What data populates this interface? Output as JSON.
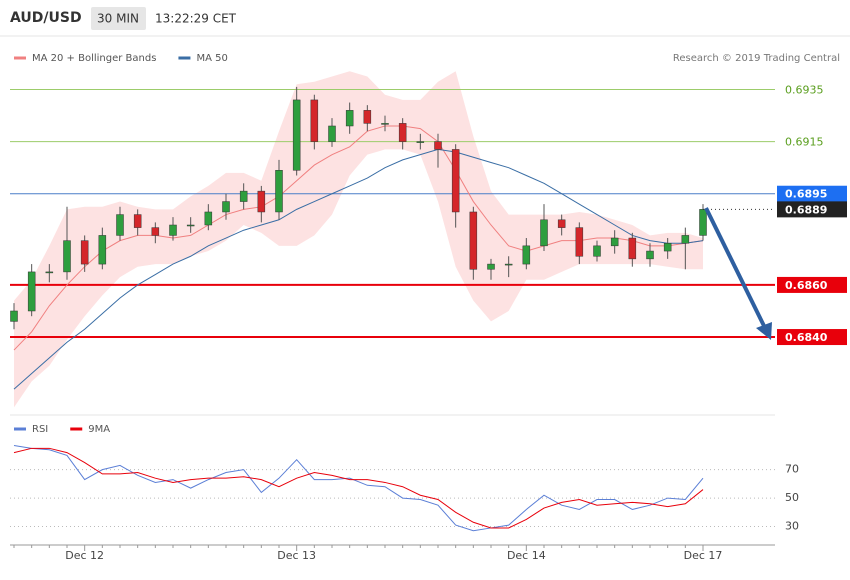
{
  "header": {
    "symbol": "AUD/USD",
    "timeframe": "30 MIN",
    "time": "13:22:29 CET"
  },
  "chart_data": [
    {
      "type": "candlestick",
      "annotation": "Research © 2019 Trading Central",
      "categories": [
        null,
        null,
        null,
        null,
        "Dec 12",
        null,
        null,
        null,
        null,
        null,
        null,
        null,
        null,
        null,
        null,
        null,
        "Dec 13",
        null,
        null,
        null,
        null,
        null,
        null,
        null,
        null,
        null,
        null,
        null,
        null,
        "Dec 14",
        null,
        null,
        null,
        null,
        null,
        null,
        null,
        null,
        null,
        "Dec 17"
      ],
      "open": [
        0.6846,
        0.685,
        0.6865,
        0.6865,
        0.6877,
        0.6868,
        0.6879,
        0.6887,
        0.6882,
        0.6879,
        0.6883,
        0.6883,
        0.6888,
        0.6892,
        0.6896,
        0.6888,
        0.6904,
        0.6931,
        0.6915,
        0.6921,
        0.6927,
        0.6922,
        0.6922,
        0.6915,
        0.6915,
        0.6912,
        0.6888,
        0.6866,
        0.6868,
        0.6868,
        0.6875,
        0.6885,
        0.6882,
        0.6871,
        0.6875,
        0.6878,
        0.687,
        0.6873,
        0.6876,
        0.6879
      ],
      "high": [
        0.6853,
        0.6868,
        0.6868,
        0.689,
        0.6879,
        0.6882,
        0.689,
        0.6889,
        0.6884,
        0.6886,
        0.6886,
        0.6891,
        0.6895,
        0.6899,
        0.6898,
        0.6908,
        0.6936,
        0.6933,
        0.6924,
        0.693,
        0.6929,
        0.6925,
        0.6924,
        0.6918,
        0.6918,
        0.6914,
        0.689,
        0.687,
        0.6871,
        0.6878,
        0.6891,
        0.6887,
        0.6884,
        0.6877,
        0.6881,
        0.688,
        0.6876,
        0.6878,
        0.6882,
        0.6891
      ],
      "low": [
        0.6843,
        0.6848,
        0.6861,
        0.6862,
        0.6865,
        0.6866,
        0.6877,
        0.6879,
        0.6876,
        0.6877,
        0.688,
        0.6881,
        0.6885,
        0.6889,
        0.6884,
        0.6885,
        0.6902,
        0.6912,
        0.6913,
        0.6918,
        0.6919,
        0.6919,
        0.6912,
        0.6912,
        0.6905,
        0.6882,
        0.6862,
        0.6862,
        0.6863,
        0.6866,
        0.6873,
        0.6879,
        0.6868,
        0.6869,
        0.6872,
        0.6867,
        0.6867,
        0.687,
        0.6866,
        0.6877
      ],
      "close": [
        0.685,
        0.6865,
        0.6865,
        0.6877,
        0.6868,
        0.6879,
        0.6887,
        0.6882,
        0.6879,
        0.6883,
        0.6883,
        0.6888,
        0.6892,
        0.6896,
        0.6888,
        0.6904,
        0.6931,
        0.6915,
        0.6921,
        0.6927,
        0.6922,
        0.6922,
        0.6915,
        0.6915,
        0.6912,
        0.6888,
        0.6866,
        0.6868,
        0.6868,
        0.6875,
        0.6885,
        0.6882,
        0.6871,
        0.6875,
        0.6878,
        0.687,
        0.6873,
        0.6876,
        0.6879,
        0.6889
      ],
      "up_color": "#2e9e3e",
      "down_color": "#d4262a",
      "band_color": "#fde2e2",
      "series": [
        {
          "name": "MA 20 + Bollinger Bands",
          "color": "#f08080",
          "values": [
            0.6835,
            0.6842,
            0.6852,
            0.686,
            0.6867,
            0.6873,
            0.6877,
            0.6879,
            0.6879,
            0.6878,
            0.6879,
            0.6883,
            0.6887,
            0.6889,
            0.689,
            0.6894,
            0.69,
            0.6906,
            0.691,
            0.6913,
            0.6919,
            0.6921,
            0.6921,
            0.692,
            0.6915,
            0.6904,
            0.6892,
            0.6883,
            0.6875,
            0.6873,
            0.6875,
            0.6877,
            0.6877,
            0.6878,
            0.6878,
            0.6877,
            0.6875,
            0.6875,
            0.6876,
            0.6877
          ],
          "upper": [
            0.6854,
            0.6862,
            0.6875,
            0.6889,
            0.689,
            0.689,
            0.6892,
            0.689,
            0.6889,
            0.6889,
            0.6894,
            0.6898,
            0.6903,
            0.6903,
            0.69,
            0.6919,
            0.6937,
            0.6938,
            0.694,
            0.6942,
            0.694,
            0.6933,
            0.6931,
            0.6931,
            0.6938,
            0.6942,
            0.6917,
            0.6896,
            0.6887,
            0.6887,
            0.6887,
            0.6887,
            0.6888,
            0.6887,
            0.6885,
            0.6883,
            0.6879,
            0.688,
            0.688,
            0.6878
          ],
          "lower": [
            0.6813,
            0.6823,
            0.6829,
            0.6839,
            0.6848,
            0.6856,
            0.6863,
            0.6867,
            0.6868,
            0.6868,
            0.6871,
            0.6873,
            0.6877,
            0.6883,
            0.688,
            0.6875,
            0.6875,
            0.6879,
            0.6887,
            0.6902,
            0.691,
            0.6912,
            0.6912,
            0.691,
            0.6892,
            0.6867,
            0.6854,
            0.6846,
            0.685,
            0.6862,
            0.6862,
            0.6865,
            0.6868,
            0.6868,
            0.6868,
            0.6868,
            0.6868,
            0.6867,
            0.6866,
            0.6866
          ]
        },
        {
          "name": "MA 50",
          "color": "#3a6ea5",
          "values": [
            0.682,
            0.6826,
            0.6832,
            0.6838,
            0.6843,
            0.6849,
            0.6855,
            0.686,
            0.6864,
            0.6868,
            0.6871,
            0.6875,
            0.6878,
            0.6881,
            0.6883,
            0.6885,
            0.6889,
            0.6892,
            0.6895,
            0.6898,
            0.6901,
            0.6905,
            0.6908,
            0.691,
            0.6912,
            0.6911,
            0.6909,
            0.6907,
            0.6905,
            0.6902,
            0.6899,
            0.6895,
            0.6891,
            0.6887,
            0.6883,
            0.6879,
            0.6877,
            0.6876,
            0.6876,
            0.6877
          ]
        }
      ],
      "levels": [
        {
          "value": 0.6935,
          "label": "0.6935",
          "color": "#9ccc6a",
          "text_color": "#5a9e1e",
          "box": false
        },
        {
          "value": 0.6915,
          "label": "0.6915",
          "color": "#9ccc6a",
          "text_color": "#5a9e1e",
          "box": false
        },
        {
          "value": 0.6895,
          "label": "0.6895",
          "color": "#4a7ec8",
          "text_color": "#ffffff",
          "box": "#1d6ff2"
        },
        {
          "value": 0.686,
          "label": "0.6860",
          "color": "#e8000b",
          "text_color": "#ffffff",
          "box": "#e8000b"
        },
        {
          "value": 0.684,
          "label": "0.6840",
          "color": "#e8000b",
          "text_color": "#ffffff",
          "box": "#e8000b"
        }
      ],
      "ylim": [
        0.6812,
        0.6954
      ]
    },
    {
      "type": "line",
      "series": [
        {
          "name": "RSI",
          "color": "#5b7fd6",
          "values": [
            87,
            85,
            84,
            80,
            63,
            70,
            73,
            66,
            61,
            63,
            57,
            63,
            68,
            70,
            54,
            64,
            77,
            63,
            63,
            64,
            59,
            58,
            50,
            49,
            45,
            31,
            27,
            29,
            31,
            42,
            52,
            45,
            42,
            49,
            49,
            42,
            45,
            50,
            49,
            64
          ]
        },
        {
          "name": "9MA",
          "color": "#e8000b",
          "values": [
            82,
            85,
            85,
            82,
            75,
            67,
            67,
            68,
            64,
            61,
            63,
            64,
            64,
            65,
            63,
            58,
            64,
            68,
            66,
            63,
            63,
            61,
            58,
            52,
            49,
            40,
            33,
            29,
            29,
            35,
            43,
            47,
            49,
            45,
            46,
            47,
            46,
            44,
            46,
            56
          ]
        }
      ],
      "ylim": [
        17,
        100
      ],
      "yticks": [
        30,
        50,
        70
      ]
    }
  ]
}
